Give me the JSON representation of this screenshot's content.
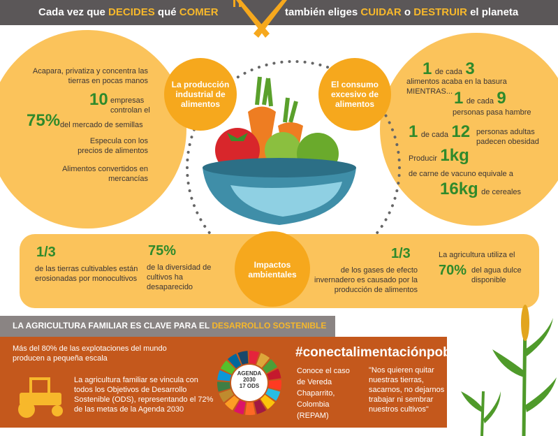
{
  "header": {
    "left": [
      "Cada vez que",
      "DECIDES",
      "qué",
      "COMER"
    ],
    "right": [
      "también eliges",
      "CUIDAR",
      "o",
      "DESTRUIR",
      "el planeta"
    ]
  },
  "industrial": {
    "label": "La producción industrial de alimentos",
    "items": [
      "Acapara, privatiza y concentra las tierras en pocas manos",
      "10",
      "empresas controlan el",
      "75%",
      "del mercado de semillas",
      "Especula con los precios de alimentos",
      "Alimentos convertidos en mercancías"
    ]
  },
  "consumo": {
    "label": "El consumo excesivo de alimentos",
    "items": [
      "1",
      "de cada",
      "3",
      "alimentos acaba en la basura MIENTRAS...",
      "1",
      "de cada",
      "9",
      "personas pasa hambre",
      "1",
      "de cada",
      "12",
      "personas adultas padecen obesidad",
      "Producir",
      "1kg",
      "de carne de vacuno equivale a",
      "16kg",
      "de cereales"
    ]
  },
  "impactos": {
    "label": "Impactos ambientales",
    "items": [
      "1/3",
      "de las tierras cultivables están erosionadas por monocultivos",
      "75%",
      "de la diversidad de cultivos ha desaparecido",
      "1/3",
      "de los gases de efecto invernadero es causado por la producción de alimentos",
      "La agricultura utiliza el",
      "70%",
      "del agua dulce disponible"
    ]
  },
  "familiar": {
    "title": [
      "LA AGRICULTURA FAMILIAR ES CLAVE PARA EL",
      "DESARROLLO SOSTENIBLE"
    ],
    "text1": "Más del 80% de las explotaciones del mundo producen a pequeña escala",
    "text2": "La agricultura familiar se vincula con todos los Objetivos de Desarrollo Sostenible (ODS), representando el 72% de las metas de la Agenda 2030",
    "agenda": [
      "AGENDA",
      "2030",
      "17 ODS"
    ],
    "hashtag": "#conectalimentaciónpobreza",
    "caso": "Conoce el caso de Vereda Chaparrito, Colombia (REPAM)",
    "quote": "\"Nos quieren quitar nuestras tierras, sacarnos, no dejarnos trabajar ni sembrar nuestros cultivos\""
  }
}
